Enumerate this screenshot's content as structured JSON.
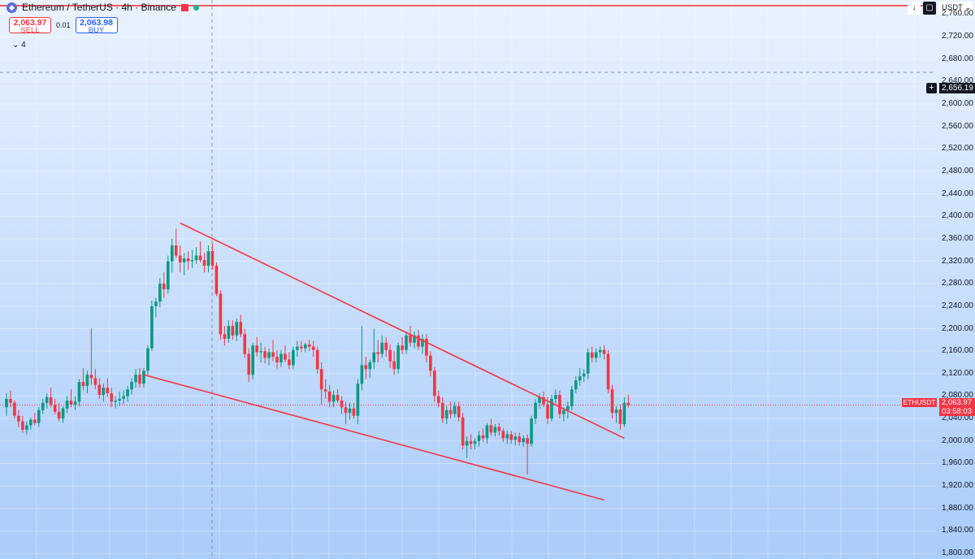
{
  "header": {
    "symbol": "Ethereum / TetherUS · 4h · Binance"
  },
  "trade": {
    "sell_price": "2,063.97",
    "sell_label": "SELL",
    "spread": "0.01",
    "buy_price": "2,063.98",
    "buy_label": "BUY"
  },
  "indicators_toggle": "⌄ 4",
  "currency_selector": "USDT ⌄",
  "toolbar": {
    "arrow_glyph": "↓",
    "box_glyph": "▢"
  },
  "price_labels": {
    "crosshair_price": "2,656.19",
    "symbol_tag": "ETHUSDT",
    "last_price": "2,063.97",
    "countdown": "03:58:03"
  },
  "colors": {
    "up": "#089981",
    "down": "#f23645",
    "trendline": "#f23645",
    "accent": "#2962ff"
  },
  "chart_data": {
    "type": "candlestick",
    "symbol": "ETHUSDT",
    "timeframe": "4h",
    "y_axis_ticks": [
      2760,
      2720,
      2680,
      2640,
      2600,
      2560,
      2520,
      2480,
      2440,
      2400,
      2360,
      2320,
      2280,
      2240,
      2200,
      2160,
      2120,
      2080,
      2040,
      2000,
      1960,
      1920,
      1880,
      1840,
      1800
    ],
    "y_tick_labels": [
      "2,760.00",
      "2,720.00",
      "2,680.00",
      "2,640.00",
      "2,600.00",
      "2,560.00",
      "2,520.00",
      "2,480.00",
      "2,440.00",
      "2,400.00",
      "2,360.00",
      "2,320.00",
      "2,280.00",
      "2,240.00",
      "2,200.00",
      "2,160.00",
      "2,120.00",
      "2,080.00",
      "2,040.00",
      "2,000.00",
      "1,960.00",
      "1,920.00",
      "1,880.00",
      "1,840.00",
      "1,800.00"
    ],
    "ylim": [
      1790,
      2785
    ],
    "horizontal_line": 2775,
    "crosshair_price": 2656.19,
    "last_price": 2063.97,
    "candles": [
      [
        2060,
        2085,
        2045,
        2075
      ],
      [
        2075,
        2090,
        2060,
        2068
      ],
      [
        2068,
        2072,
        2040,
        2045
      ],
      [
        2045,
        2055,
        2025,
        2035
      ],
      [
        2035,
        2045,
        2015,
        2020
      ],
      [
        2020,
        2035,
        2012,
        2028
      ],
      [
        2028,
        2042,
        2020,
        2038
      ],
      [
        2038,
        2050,
        2028,
        2032
      ],
      [
        2032,
        2060,
        2025,
        2055
      ],
      [
        2055,
        2075,
        2048,
        2068
      ],
      [
        2068,
        2085,
        2058,
        2078
      ],
      [
        2078,
        2095,
        2060,
        2065
      ],
      [
        2065,
        2075,
        2048,
        2052
      ],
      [
        2052,
        2068,
        2035,
        2040
      ],
      [
        2040,
        2062,
        2032,
        2058
      ],
      [
        2058,
        2080,
        2050,
        2072
      ],
      [
        2072,
        2092,
        2060,
        2065
      ],
      [
        2065,
        2080,
        2055,
        2070
      ],
      [
        2070,
        2110,
        2062,
        2105
      ],
      [
        2105,
        2130,
        2090,
        2098
      ],
      [
        2098,
        2125,
        2085,
        2118
      ],
      [
        2118,
        2200,
        2100,
        2112
      ],
      [
        2112,
        2128,
        2092,
        2100
      ],
      [
        2100,
        2112,
        2075,
        2082
      ],
      [
        2082,
        2102,
        2070,
        2095
      ],
      [
        2095,
        2112,
        2078,
        2085
      ],
      [
        2085,
        2095,
        2060,
        2070
      ],
      [
        2070,
        2080,
        2058,
        2072
      ],
      [
        2072,
        2088,
        2062,
        2075
      ],
      [
        2075,
        2090,
        2066,
        2080
      ],
      [
        2080,
        2098,
        2070,
        2092
      ],
      [
        2092,
        2112,
        2082,
        2105
      ],
      [
        2105,
        2128,
        2095,
        2118
      ],
      [
        2118,
        2130,
        2095,
        2102
      ],
      [
        2102,
        2130,
        2095,
        2125
      ],
      [
        2125,
        2170,
        2118,
        2165
      ],
      [
        2165,
        2250,
        2160,
        2240
      ],
      [
        2240,
        2255,
        2220,
        2248
      ],
      [
        2248,
        2290,
        2238,
        2280
      ],
      [
        2280,
        2300,
        2255,
        2270
      ],
      [
        2270,
        2330,
        2262,
        2320
      ],
      [
        2320,
        2360,
        2300,
        2348
      ],
      [
        2348,
        2378,
        2325,
        2330
      ],
      [
        2330,
        2348,
        2300,
        2318
      ],
      [
        2318,
        2335,
        2295,
        2325
      ],
      [
        2325,
        2338,
        2305,
        2320
      ],
      [
        2320,
        2340,
        2308,
        2322
      ],
      [
        2322,
        2345,
        2315,
        2330
      ],
      [
        2330,
        2355,
        2318,
        2322
      ],
      [
        2322,
        2335,
        2300,
        2312
      ],
      [
        2312,
        2348,
        2300,
        2338
      ],
      [
        2338,
        2352,
        2305,
        2312
      ],
      [
        2312,
        2318,
        2258,
        2262
      ],
      [
        2262,
        2268,
        2180,
        2190
      ],
      [
        2190,
        2205,
        2170,
        2182
      ],
      [
        2182,
        2215,
        2175,
        2205
      ],
      [
        2205,
        2215,
        2180,
        2188
      ],
      [
        2188,
        2218,
        2178,
        2212
      ],
      [
        2212,
        2225,
        2185,
        2190
      ],
      [
        2190,
        2200,
        2148,
        2155
      ],
      [
        2155,
        2165,
        2105,
        2118
      ],
      [
        2118,
        2175,
        2110,
        2170
      ],
      [
        2170,
        2185,
        2150,
        2158
      ],
      [
        2158,
        2175,
        2140,
        2160
      ],
      [
        2160,
        2168,
        2138,
        2148
      ],
      [
        2148,
        2165,
        2135,
        2158
      ],
      [
        2158,
        2180,
        2142,
        2150
      ],
      [
        2150,
        2162,
        2128,
        2140
      ],
      [
        2140,
        2162,
        2132,
        2155
      ],
      [
        2155,
        2170,
        2140,
        2145
      ],
      [
        2145,
        2158,
        2128,
        2135
      ],
      [
        2135,
        2168,
        2128,
        2162
      ],
      [
        2162,
        2178,
        2150,
        2168
      ],
      [
        2168,
        2178,
        2158,
        2165
      ],
      [
        2165,
        2175,
        2158,
        2172
      ],
      [
        2172,
        2180,
        2160,
        2168
      ],
      [
        2168,
        2178,
        2150,
        2162
      ],
      [
        2162,
        2168,
        2120,
        2128
      ],
      [
        2128,
        2140,
        2065,
        2092
      ],
      [
        2092,
        2110,
        2075,
        2088
      ],
      [
        2088,
        2100,
        2060,
        2070
      ],
      [
        2070,
        2090,
        2060,
        2082
      ],
      [
        2082,
        2092,
        2068,
        2072
      ],
      [
        2072,
        2080,
        2048,
        2060
      ],
      [
        2060,
        2070,
        2030,
        2050
      ],
      [
        2050,
        2068,
        2038,
        2058
      ],
      [
        2058,
        2068,
        2040,
        2045
      ],
      [
        2045,
        2110,
        2030,
        2102
      ],
      [
        2102,
        2205,
        2090,
        2135
      ],
      [
        2135,
        2150,
        2110,
        2128
      ],
      [
        2128,
        2145,
        2112,
        2140
      ],
      [
        2140,
        2200,
        2128,
        2158
      ],
      [
        2158,
        2180,
        2140,
        2155
      ],
      [
        2155,
        2188,
        2148,
        2175
      ],
      [
        2175,
        2185,
        2150,
        2162
      ],
      [
        2162,
        2172,
        2130,
        2142
      ],
      [
        2142,
        2160,
        2118,
        2128
      ],
      [
        2128,
        2175,
        2120,
        2170
      ],
      [
        2170,
        2185,
        2155,
        2162
      ],
      [
        2162,
        2195,
        2155,
        2188
      ],
      [
        2188,
        2205,
        2168,
        2175
      ],
      [
        2175,
        2195,
        2165,
        2188
      ],
      [
        2188,
        2198,
        2162,
        2168
      ],
      [
        2168,
        2190,
        2155,
        2182
      ],
      [
        2182,
        2190,
        2140,
        2152
      ],
      [
        2152,
        2160,
        2115,
        2125
      ],
      [
        2125,
        2132,
        2070,
        2080
      ],
      [
        2080,
        2090,
        2060,
        2068
      ],
      [
        2068,
        2078,
        2032,
        2040
      ],
      [
        2040,
        2062,
        2030,
        2055
      ],
      [
        2055,
        2070,
        2040,
        2048
      ],
      [
        2048,
        2070,
        2042,
        2062
      ],
      [
        2062,
        2070,
        2035,
        2042
      ],
      [
        2042,
        2050,
        1985,
        1992
      ],
      [
        1992,
        2008,
        1970,
        2000
      ],
      [
        2000,
        2012,
        1985,
        1995
      ],
      [
        1995,
        2005,
        1985,
        2000
      ],
      [
        2000,
        2018,
        1990,
        2010
      ],
      [
        2010,
        2022,
        1998,
        2005
      ],
      [
        2005,
        2032,
        1995,
        2028
      ],
      [
        2028,
        2040,
        2010,
        2015
      ],
      [
        2015,
        2030,
        2008,
        2025
      ],
      [
        2025,
        2032,
        2010,
        2018
      ],
      [
        2018,
        2022,
        1998,
        2005
      ],
      [
        2005,
        2018,
        1995,
        2012
      ],
      [
        2012,
        2018,
        1995,
        2002
      ],
      [
        2002,
        2015,
        1992,
        2008
      ],
      [
        2008,
        2015,
        1992,
        1998
      ],
      [
        1998,
        2010,
        1990,
        2005
      ],
      [
        2005,
        2012,
        1940,
        1995
      ],
      [
        1995,
        2045,
        1990,
        2040
      ],
      [
        2040,
        2075,
        2030,
        2068
      ],
      [
        2068,
        2085,
        2058,
        2078
      ],
      [
        2078,
        2088,
        2060,
        2065
      ],
      [
        2065,
        2078,
        2030,
        2040
      ],
      [
        2040,
        2082,
        2035,
        2075
      ],
      [
        2075,
        2092,
        2065,
        2082
      ],
      [
        2082,
        2090,
        2040,
        2048
      ],
      [
        2048,
        2060,
        2035,
        2055
      ],
      [
        2055,
        2070,
        2040,
        2062
      ],
      [
        2062,
        2098,
        2055,
        2092
      ],
      [
        2092,
        2115,
        2085,
        2108
      ],
      [
        2108,
        2130,
        2098,
        2115
      ],
      [
        2115,
        2128,
        2105,
        2120
      ],
      [
        2120,
        2165,
        2110,
        2158
      ],
      [
        2158,
        2168,
        2140,
        2148
      ],
      [
        2148,
        2165,
        2140,
        2158
      ],
      [
        2158,
        2168,
        2148,
        2162
      ],
      [
        2162,
        2170,
        2145,
        2155
      ],
      [
        2155,
        2162,
        2085,
        2092
      ],
      [
        2092,
        2100,
        2040,
        2050
      ],
      [
        2050,
        2062,
        2032,
        2056
      ],
      [
        2056,
        2065,
        2020,
        2030
      ],
      [
        2030,
        2078,
        2025,
        2068
      ],
      [
        2068,
        2082,
        2060,
        2064
      ]
    ],
    "trendlines": [
      {
        "from": [
          43,
          2388
        ],
        "to": [
          153,
          2005
        ]
      },
      {
        "from": [
          34,
          2118
        ],
        "to": [
          148,
          1895
        ]
      }
    ]
  }
}
